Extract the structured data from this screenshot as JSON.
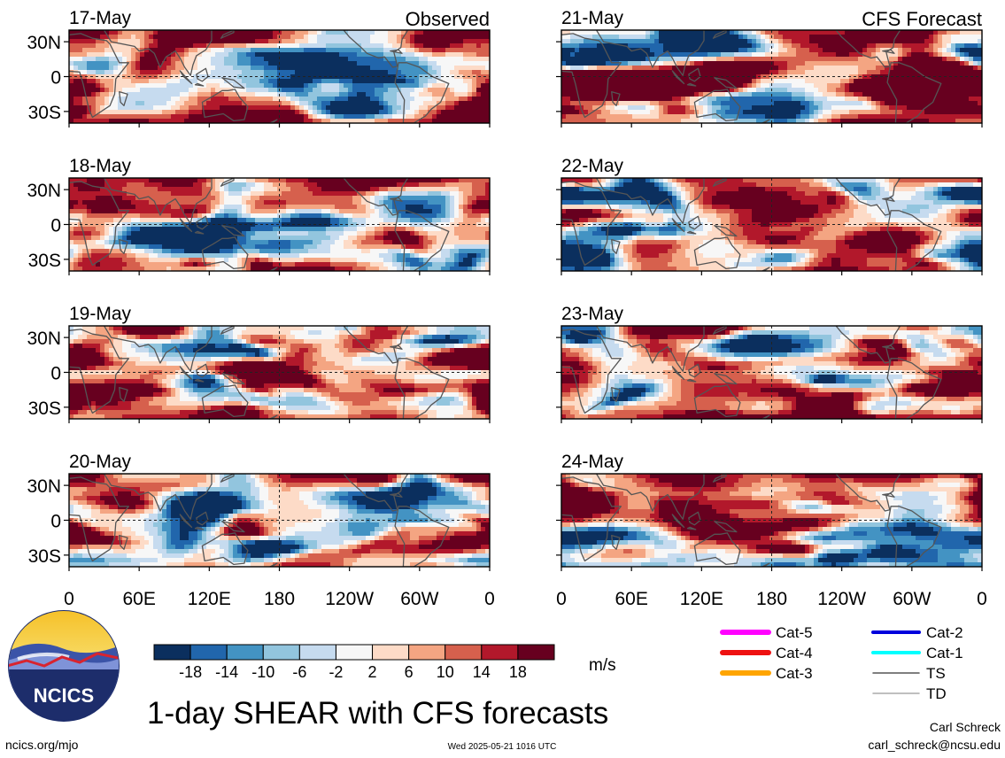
{
  "header": {
    "observed_label": "Observed",
    "forecast_label": "CFS Forecast"
  },
  "chart_data": {
    "type": "heatmap",
    "variable": "1-day SHEAR",
    "units": "m/s",
    "title": "1-day SHEAR with CFS forecasts",
    "lon_tick_labels": [
      "0",
      "60E",
      "120E",
      "180",
      "120W",
      "60W",
      "0"
    ],
    "lat_tick_labels": [
      "30N",
      "0",
      "30S"
    ],
    "lon_ticks_deg": [
      0,
      60,
      120,
      180,
      240,
      300,
      360
    ],
    "lat_ticks_deg": [
      30,
      0,
      -30
    ],
    "lat_range": [
      -40,
      40
    ],
    "lon_range": [
      0,
      360
    ],
    "panels": [
      {
        "date": "17-May",
        "source": "Observed",
        "seed": 11
      },
      {
        "date": "18-May",
        "source": "Observed",
        "seed": 23
      },
      {
        "date": "19-May",
        "source": "Observed",
        "seed": 37
      },
      {
        "date": "20-May",
        "source": "Observed",
        "seed": 41
      },
      {
        "date": "21-May",
        "source": "CFS Forecast",
        "seed": 53
      },
      {
        "date": "22-May",
        "source": "CFS Forecast",
        "seed": 67
      },
      {
        "date": "23-May",
        "source": "CFS Forecast",
        "seed": 71
      },
      {
        "date": "24-May",
        "source": "CFS Forecast",
        "seed": 89
      }
    ],
    "colorbar": {
      "labels": [
        "-18",
        "-14",
        "-10",
        "-6",
        "-2",
        "2",
        "6",
        "10",
        "14",
        "18"
      ],
      "levels": [
        -22,
        -18,
        -14,
        -10,
        -6,
        -2,
        2,
        6,
        10,
        14,
        18,
        22
      ],
      "colors": [
        "#0b2f5e",
        "#2166ac",
        "#4393c3",
        "#92c5de",
        "#c6dbef",
        "#f7f7f7",
        "#fddbc7",
        "#f4a582",
        "#d6604d",
        "#b2182b",
        "#67001f"
      ],
      "unit_label": "m/s"
    },
    "legend": [
      {
        "label": "Cat-5",
        "color": "#ff00ff",
        "weight": "thick"
      },
      {
        "label": "Cat-4",
        "color": "#ee1111",
        "weight": "thick"
      },
      {
        "label": "Cat-3",
        "color": "#ffa500",
        "weight": "thick"
      },
      {
        "label": "Cat-2",
        "color": "#0000dd",
        "weight": "medium"
      },
      {
        "label": "Cat-1",
        "color": "#00ffff",
        "weight": "medium"
      },
      {
        "label": "TS",
        "color": "#555555",
        "weight": "thin"
      },
      {
        "label": "TD",
        "color": "#aaaaaa",
        "weight": "thin"
      }
    ]
  },
  "logo": {
    "text": "NCICS"
  },
  "footer": {
    "site": "ncics.org/mjo",
    "timestamp": "Wed 2025-05-21 1016 UTC",
    "author": "Carl Schreck",
    "email": "carl_schreck@ncsu.edu"
  }
}
